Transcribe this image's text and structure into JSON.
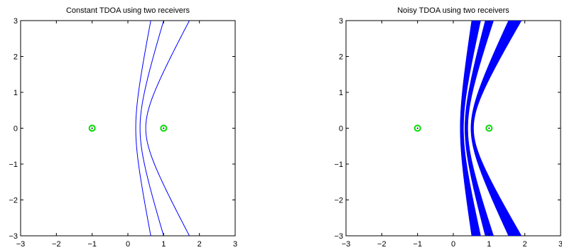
{
  "chart_data": [
    {
      "type": "line",
      "title": "Constant TDOA using two receivers",
      "xlabel": "",
      "ylabel": "",
      "xlim": [
        -3,
        3
      ],
      "ylim": [
        -3,
        3
      ],
      "xticks": [
        -3,
        -2,
        -1,
        0,
        1,
        2,
        3
      ],
      "yticks": [
        -3,
        -2,
        -1,
        0,
        1,
        2,
        3
      ],
      "grid": false,
      "series_color": "#0000ff",
      "marker_color": "#00dd00",
      "receivers": [
        {
          "x": -1,
          "y": 0
        },
        {
          "x": 1,
          "y": 0
        }
      ],
      "series": [
        {
          "vertex_x": 0.22,
          "values_x_at_y_3": 0.64
        },
        {
          "vertex_x": 0.34,
          "values_x_at_y_3": 1.0
        },
        {
          "vertex_x": 0.5,
          "values_x_at_y_3": 1.72
        }
      ]
    },
    {
      "type": "line",
      "title": "Noisy TDOA using two receivers",
      "xlabel": "",
      "ylabel": "",
      "xlim": [
        -3,
        3
      ],
      "ylim": [
        -3,
        3
      ],
      "xticks": [
        -3,
        -2,
        -1,
        0,
        1,
        2,
        3
      ],
      "yticks": [
        -3,
        -2,
        -1,
        0,
        1,
        2,
        3
      ],
      "grid": false,
      "series_color": "#0000ff",
      "marker_color": "#00dd00",
      "receivers": [
        {
          "x": -1,
          "y": 0
        },
        {
          "x": 1,
          "y": 0
        }
      ],
      "bands": [
        {
          "vertex_x_min": 0.2,
          "vertex_x_max": 0.28,
          "x_at_y_3_min": 0.52,
          "x_at_y_3_max": 0.76
        },
        {
          "vertex_x_min": 0.33,
          "vertex_x_max": 0.4,
          "x_at_y_3_min": 0.9,
          "x_at_y_3_max": 1.12
        },
        {
          "vertex_x_min": 0.5,
          "vertex_x_max": 0.56,
          "x_at_y_3_min": 1.55,
          "x_at_y_3_max": 1.9
        }
      ]
    }
  ]
}
